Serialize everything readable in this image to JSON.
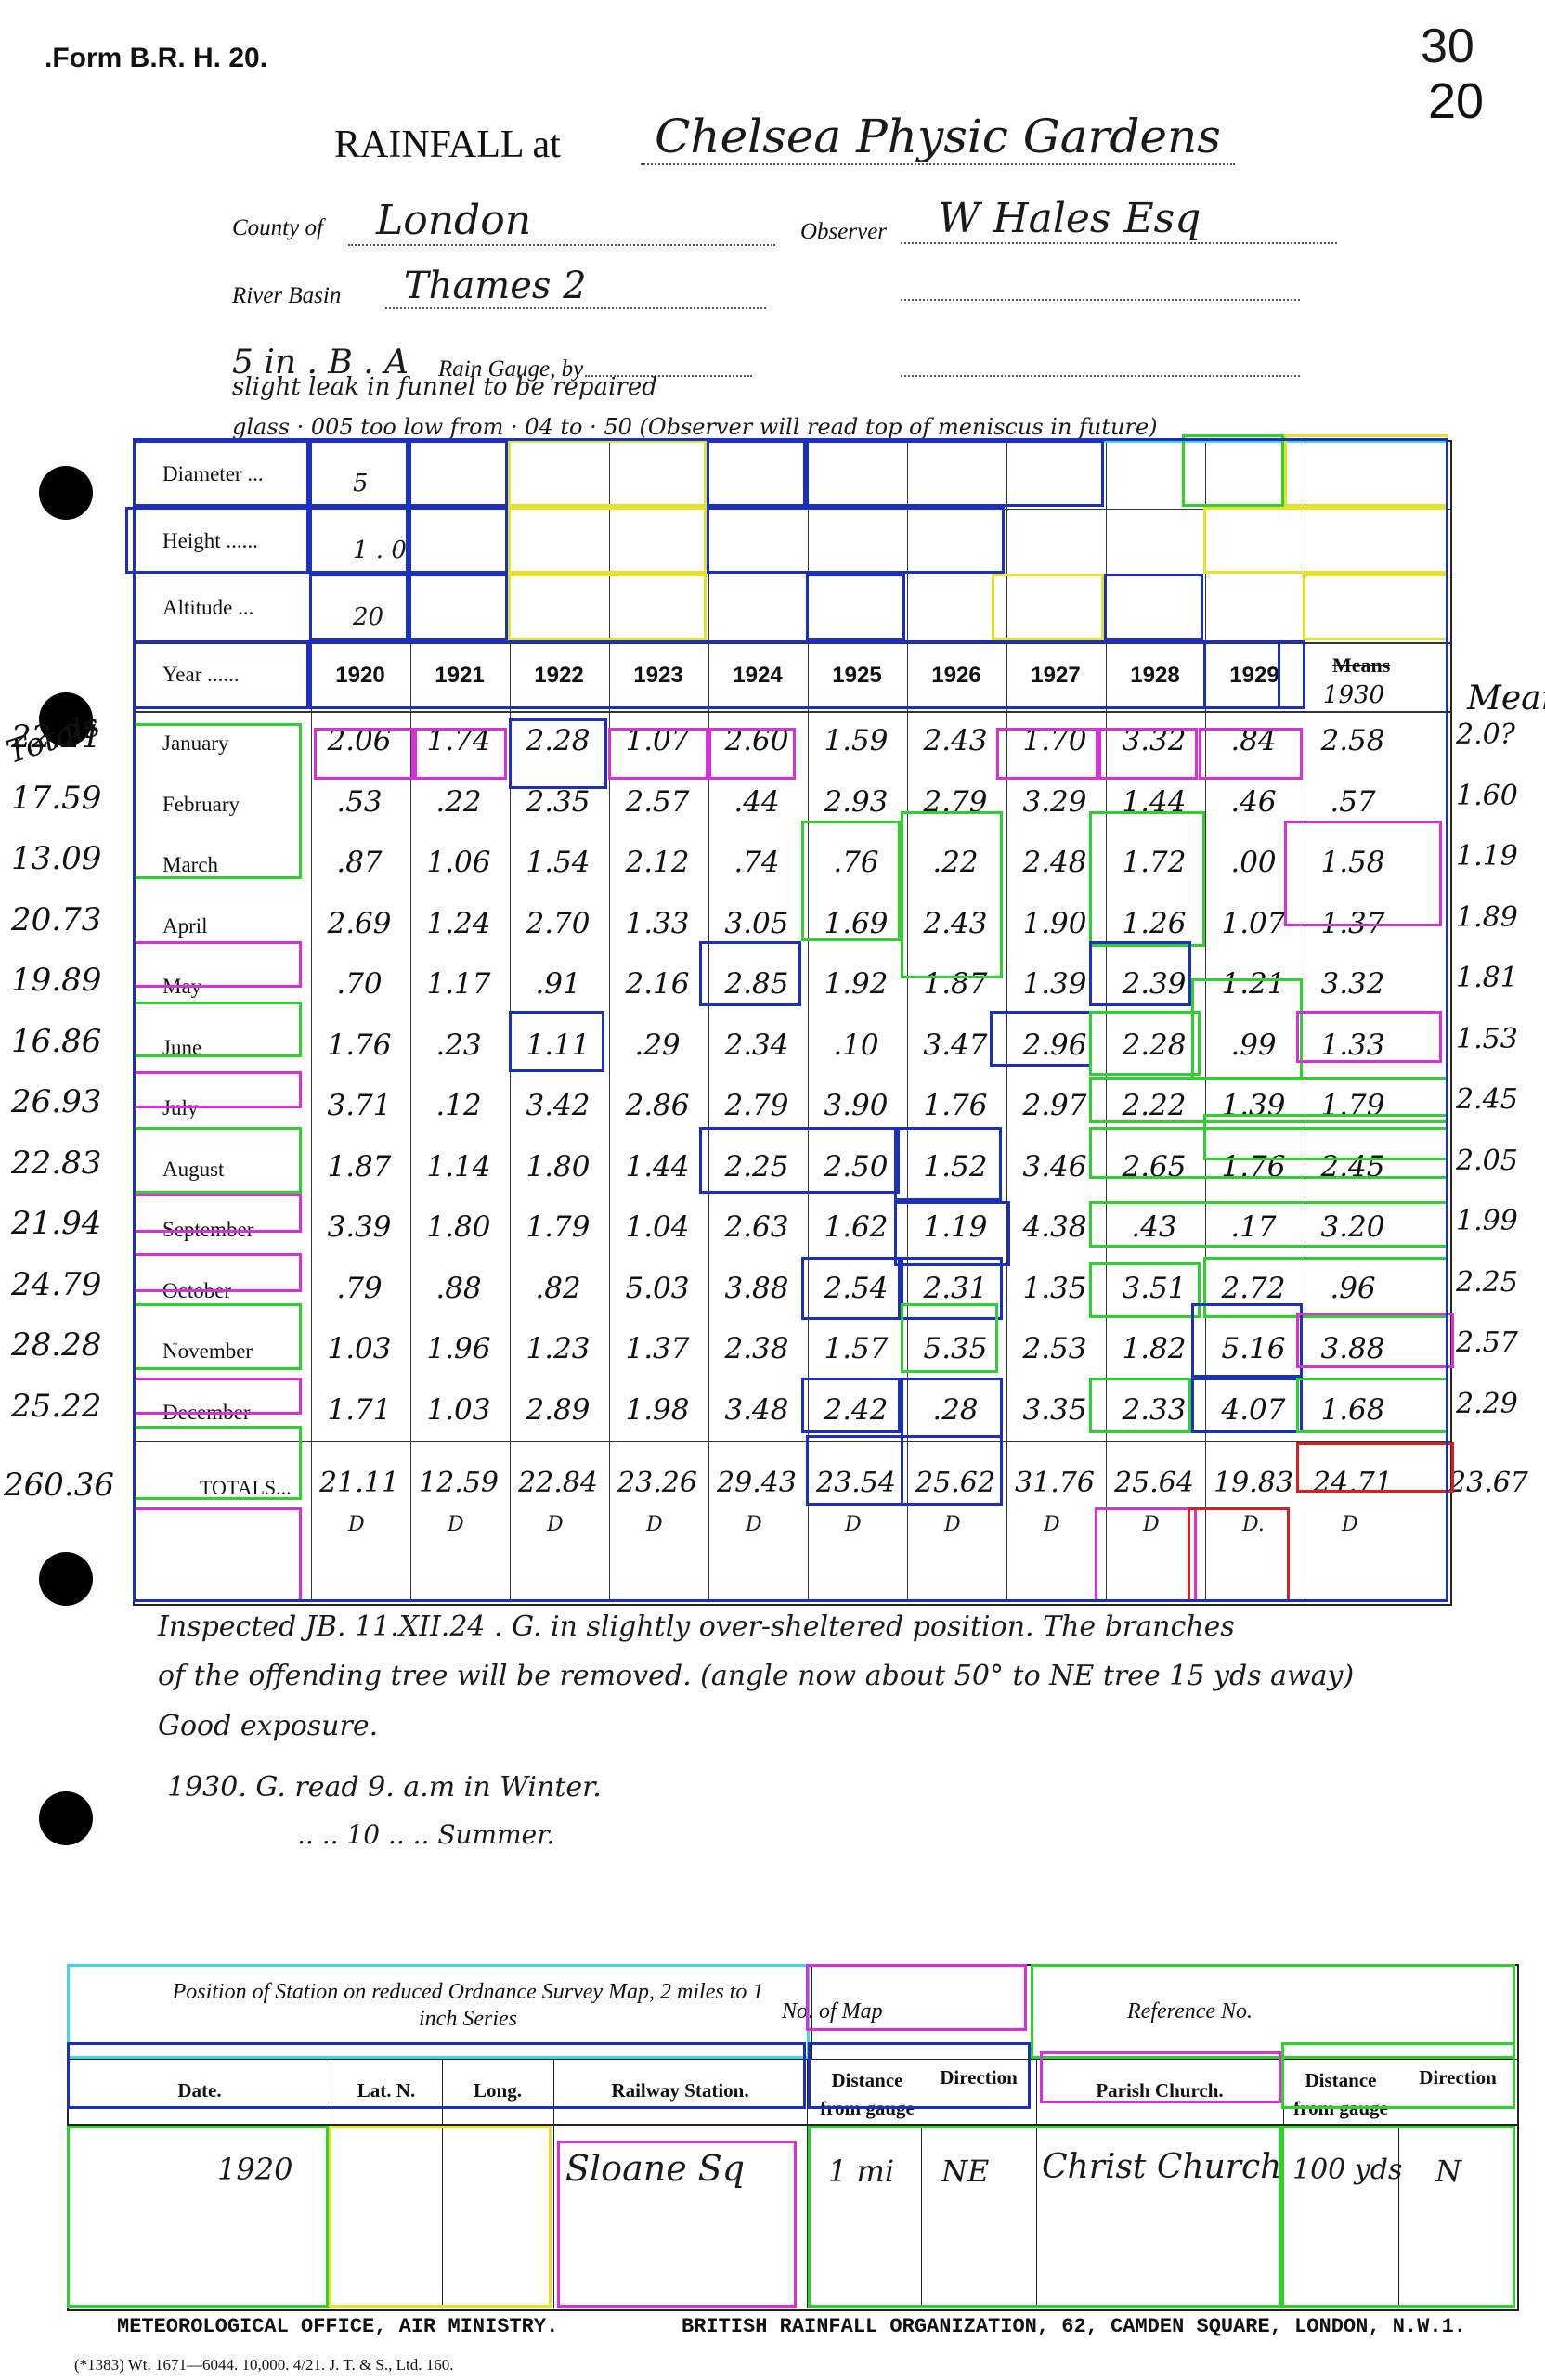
{
  "header": {
    "form_code": ".Form B.R. H. 20.",
    "corner_number_top": "30",
    "corner_number_bottom": "20",
    "title_prefix": "RAINFALL at",
    "station": "Chelsea Physic Gardens",
    "county_label": "County of",
    "county": "London",
    "observer_label": "Observer",
    "observer": "W Hales Esq",
    "river_label": "River Basin",
    "river": "Thames 2",
    "gauge_label": "Rain Gauge, by",
    "gauge_type": "5 in . B . A",
    "gauge_note_1": "slight leak in funnel to be repaired",
    "gauge_note_2": "glass · 005 too low from · 04 to · 50 (Observer will read top of meniscus in future)"
  },
  "table": {
    "row_labels": {
      "diameter": "Diameter ...",
      "height": "Height ......",
      "altitude": "Altitude ...",
      "year": "Year ......",
      "totals": "TOTALS..."
    },
    "gauge_values": {
      "diameter": "5",
      "height": "1 . 0",
      "altitude": "20"
    },
    "years": [
      "1920",
      "1921",
      "1922",
      "1923",
      "1924",
      "1925",
      "1926",
      "1927",
      "1928",
      "1929",
      "1930"
    ],
    "year_1930_struck": "Means",
    "right_header": "Mean",
    "left_header": "Totals",
    "months": [
      {
        "name": "January",
        "side_total": "22.21",
        "values": [
          "2.06",
          "1.74",
          "2.28",
          "1.07",
          "2.60",
          "1.59",
          "2.43",
          "1.70",
          "3.32",
          ".84",
          "2.58"
        ],
        "mean": "2.0?"
      },
      {
        "name": "February",
        "side_total": "17.59",
        "values": [
          ".53",
          ".22",
          "2.35",
          "2.57",
          ".44",
          "2.93",
          "2.79",
          "3.29",
          "1.44",
          ".46",
          ".57"
        ],
        "mean": "1.60"
      },
      {
        "name": "March",
        "side_total": "13.09",
        "values": [
          ".87",
          "1.06",
          "1.54",
          "2.12",
          ".74",
          ".76",
          ".22",
          "2.48",
          "1.72",
          ".00",
          "1.58"
        ],
        "mean": "1.19"
      },
      {
        "name": "April",
        "side_total": "20.73",
        "values": [
          "2.69",
          "1.24",
          "2.70",
          "1.33",
          "3.05",
          "1.69",
          "2.43",
          "1.90",
          "1.26",
          "1.07",
          "1.37"
        ],
        "mean": "1.89"
      },
      {
        "name": "May",
        "side_total": "19.89",
        "values": [
          ".70",
          "1.17",
          ".91",
          "2.16",
          "2.85",
          "1.92",
          "1.87",
          "1.39",
          "2.39",
          "1.21",
          "3.32"
        ],
        "mean": "1.81"
      },
      {
        "name": "June",
        "side_total": "16.86",
        "values": [
          "1.76",
          ".23",
          "1.11",
          ".29",
          "2.34",
          ".10",
          "3.47",
          "2.96",
          "2.28",
          ".99",
          "1.33"
        ],
        "mean": "1.53"
      },
      {
        "name": "July",
        "side_total": "26.93",
        "values": [
          "3.71",
          ".12",
          "3.42",
          "2.86",
          "2.79",
          "3.90",
          "1.76",
          "2.97",
          "2.22",
          "1.39",
          "1.79"
        ],
        "mean": "2.45"
      },
      {
        "name": "August",
        "side_total": "22.83",
        "values": [
          "1.87",
          "1.14",
          "1.80",
          "1.44",
          "2.25",
          "2.50",
          "1.52",
          "3.46",
          "2.65",
          "1.76",
          "2.45"
        ],
        "mean": "2.05"
      },
      {
        "name": "September",
        "side_total": "21.94",
        "values": [
          "3.39",
          "1.80",
          "1.79",
          "1.04",
          "2.63",
          "1.62",
          "1.19",
          "4.38",
          ".43",
          ".17",
          "3.20"
        ],
        "mean": "1.99"
      },
      {
        "name": "October",
        "side_total": "24.79",
        "values": [
          ".79",
          ".88",
          ".82",
          "5.03",
          "3.88",
          "2.54",
          "2.31",
          "1.35",
          "3.51",
          "2.72",
          ".96"
        ],
        "mean": "2.25"
      },
      {
        "name": "November",
        "side_total": "28.28",
        "values": [
          "1.03",
          "1.96",
          "1.23",
          "1.37",
          "2.38",
          "1.57",
          "5.35",
          "2.53",
          "1.82",
          "5.16",
          "3.88"
        ],
        "mean": "2.57"
      },
      {
        "name": "December",
        "side_total": "25.22",
        "values": [
          "1.71",
          "1.03",
          "2.89",
          "1.98",
          "3.48",
          "2.42",
          ".28",
          "3.35",
          "2.33",
          "4.07",
          "1.68"
        ],
        "mean": "2.29"
      }
    ],
    "totals": {
      "side_total": "260.36",
      "values": [
        "21.11",
        "12.59",
        "22.84",
        "23.26",
        "29.43",
        "23.54",
        "25.62",
        "31.76",
        "25.64",
        "19.83",
        "24.71"
      ],
      "mean": "23.67",
      "marks": [
        "D",
        "D",
        "D",
        "D",
        "D",
        "D",
        "D",
        "D",
        "D",
        "D.",
        "D"
      ]
    }
  },
  "notes": {
    "line1": "Inspected JB. 11.XII.24 . G. in slightly over-sheltered position. The branches",
    "line2": "of the offending tree will be removed. (angle now about 50° to NE tree 15 yds away)",
    "line3": "Good exposure.",
    "line4": "1930. G. read 9. a.m in Winter.",
    "line5": ".. .. 10 .. .. Summer."
  },
  "bottom": {
    "position_label": "Position of Station on reduced Ordnance Survey Map, 2 miles to 1 inch Series",
    "map_no_label": "No. of Map",
    "ref_label": "Reference No.",
    "headers": {
      "date": "Date.",
      "lat": "Lat. N.",
      "long": "Long.",
      "railway": "Railway Station.",
      "distance1": "Distance from gauge",
      "direction1": "Direction",
      "parish": "Parish Church.",
      "distance2": "Distance from gauge",
      "direction2": "Direction"
    },
    "row": {
      "date": "1920",
      "railway": "Sloane Sq",
      "distance1": "1 mi",
      "direction1": "NE",
      "parish": "Christ Church",
      "distance2": "100 yds",
      "direction2": "N"
    }
  },
  "footer": {
    "left": "METEOROLOGICAL OFFICE, AIR MINISTRY.",
    "right": "BRITISH RAINFALL ORGANIZATION, 62, CAMDEN SQUARE, LONDON, N.W.1.",
    "print_line": "(*1383) Wt. 1671—6044. 10,000. 4/21. J. T. & S., Ltd. 160."
  }
}
